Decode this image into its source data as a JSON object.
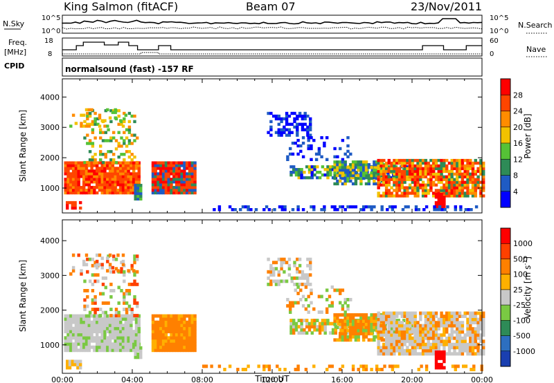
{
  "header": {
    "station": "King Salmon (fitACF)",
    "beam": "Beam 07",
    "date": "23/Nov/2011"
  },
  "param_panels": {
    "nsky_label": "N.Sky",
    "nsky_ticks": [
      "10^5",
      "10^0"
    ],
    "nsearch_label": "N.Search",
    "nsearch_ticks": [
      "10^5",
      "10^0"
    ],
    "freq_label": "Freq.",
    "freq_unit": "[MHz]",
    "freq_ticks": [
      "18",
      "8"
    ],
    "nave_label": "Nave",
    "nave_ticks": [
      "60",
      "0"
    ],
    "cpid_label": "CPID",
    "cpid_value": "normalsound (fast) -157 RF"
  },
  "chart_data": [
    {
      "type": "heatmap",
      "name": "power",
      "ylabel": "Slant Range [km]",
      "xlabel": "",
      "x_range_hours": [
        0,
        24
      ],
      "ylim": [
        180,
        4600
      ],
      "y_ticks": [
        1000,
        2000,
        3000,
        4000
      ],
      "colorbar_label": "Power [dB]",
      "colorbar_ticks": [
        "28",
        "24",
        "20",
        "16",
        "12",
        "8",
        "4"
      ],
      "colorbar_colors": [
        "#0000ff",
        "#1f5bc4",
        "#2e8b57",
        "#55c236",
        "#f2c200",
        "#ff8c00",
        "#ff4500",
        "#ff0000"
      ]
    },
    {
      "type": "heatmap",
      "name": "velocity",
      "ylabel": "Slant Range [km]",
      "xlabel": "Time UT",
      "x_ticks": [
        "00:00",
        "04:00",
        "08:00",
        "12:00",
        "16:00",
        "20:00",
        "00:00"
      ],
      "x_range_hours": [
        0,
        24
      ],
      "ylim": [
        180,
        4600
      ],
      "y_ticks": [
        1000,
        2000,
        3000,
        4000
      ],
      "colorbar_label": "Velocity [m s",
      "colorbar_label_sup": "-1",
      "colorbar_label_end": "]",
      "colorbar_ticks": [
        "1000",
        "500",
        "100",
        "25",
        "-25",
        "-100",
        "-500",
        "-1000"
      ],
      "colorbar_colors": [
        "#1a3fb0",
        "#2d6fc0",
        "#2e8b57",
        "#7ac943",
        "#c8c8c8",
        "#ffb000",
        "#ff8000",
        "#ff4000",
        "#ff0000"
      ]
    }
  ]
}
